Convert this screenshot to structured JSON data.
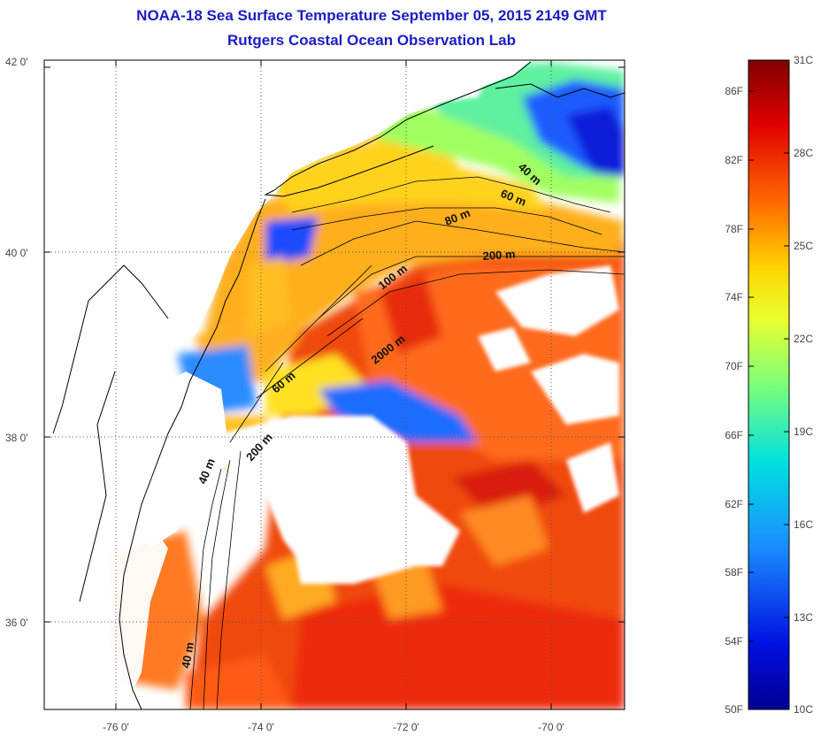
{
  "header": {
    "title": "NOAA-18 Sea Surface Temperature September 05, 2015 2149 GMT",
    "subtitle": "Rutgers Coastal Ocean Observation Lab"
  },
  "map": {
    "lat_ticks": [
      {
        "value": 42,
        "label": "42 0'"
      },
      {
        "value": 40,
        "label": "40 0'"
      },
      {
        "value": 38,
        "label": "38 0'"
      },
      {
        "value": 36,
        "label": "36 0'"
      }
    ],
    "lon_ticks": [
      {
        "value": -76,
        "label": "-76 0'"
      },
      {
        "value": -74,
        "label": "-74 0'"
      },
      {
        "value": -72,
        "label": "-72 0'"
      },
      {
        "value": -70,
        "label": "-70 0'"
      }
    ],
    "lat_range": [
      35,
      42.2
    ],
    "lon_range": [
      -77,
      -69
    ],
    "grid": "dotted",
    "contour_labels": [
      "40 m",
      "60 m",
      "80 m",
      "200 m",
      "100 m",
      "2000 m",
      "60 m",
      "200 m",
      "40 m",
      "40 m"
    ]
  },
  "colorbar": {
    "fahrenheit": [
      "86F",
      "82F",
      "78F",
      "74F",
      "70F",
      "66F",
      "62F",
      "58F",
      "54F",
      "50F"
    ],
    "celsius": [
      "31C",
      "28C",
      "25C",
      "22C",
      "19C",
      "16C",
      "13C",
      "10C"
    ],
    "colors": [
      "#800000",
      "#e00000",
      "#ff6a00",
      "#ffd400",
      "#e8ff30",
      "#7cff7a",
      "#00e0e0",
      "#1a8cff",
      "#0010e0",
      "#000090"
    ]
  },
  "palette": {
    "title_color": "#1c1cc4",
    "land": "#ffffff",
    "coast": "#000000"
  }
}
